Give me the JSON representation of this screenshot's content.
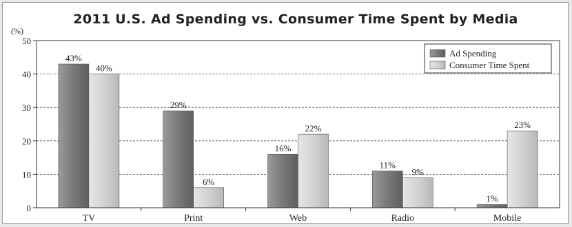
{
  "chart_data": {
    "type": "bar",
    "title": "2011 U.S. Ad Spending vs. Consumer Time Spent by Media",
    "unit_label": "(%)",
    "categories": [
      "TV",
      "Print",
      "Web",
      "Radio",
      "Mobile"
    ],
    "series": [
      {
        "name": "Ad Spending",
        "values": [
          43,
          29,
          16,
          11,
          1
        ],
        "labels": [
          "43%",
          "29%",
          "16%",
          "11%",
          "1%"
        ],
        "color": "#7a7a7a"
      },
      {
        "name": "Consumer Time Spent",
        "values": [
          40,
          6,
          22,
          9,
          23
        ],
        "labels": [
          "40%",
          "6%",
          "22%",
          "9%",
          "23%"
        ],
        "color": "#cfcfcf"
      }
    ],
    "ylim": [
      0,
      50
    ],
    "yticks": [
      0,
      10,
      20,
      30,
      40,
      50
    ],
    "grid": true,
    "legend": "top-right"
  }
}
